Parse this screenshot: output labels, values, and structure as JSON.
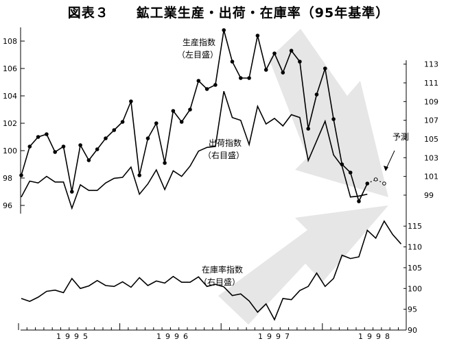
{
  "title": "図表３　　鉱工業生産・出荷・在庫率（95年基準）",
  "annotations": {
    "production": [
      "生産指数",
      "（左目盛）"
    ],
    "shipment": [
      "出荷指数",
      "（右目盛）"
    ],
    "inventory": [
      "在庫率指数",
      "（右目盛）"
    ],
    "forecast": "予測"
  },
  "colors": {
    "line": "#000000",
    "arrow": "#e6e6e6"
  },
  "chart_data": [
    {
      "type": "line",
      "x_axis": {
        "years": [
          "1995",
          "1996",
          "1997",
          "1998"
        ]
      },
      "ylim": [
        95.5,
        109
      ],
      "yticks": [
        96,
        98,
        100,
        102,
        104,
        106,
        108
      ],
      "series": [
        {
          "name": "生産指数",
          "values": [
            98.2,
            100.3,
            101.0,
            101.2,
            99.9,
            100.3,
            97.0,
            100.4,
            99.3,
            100.1,
            100.9,
            101.5,
            102.1,
            103.6,
            98.2,
            100.9,
            102.0,
            99.1,
            102.9,
            102.1,
            103.0,
            105.1,
            104.5,
            104.8,
            108.8,
            106.5,
            105.3,
            105.3,
            108.4,
            105.9,
            107.1,
            105.7,
            107.3,
            106.5,
            101.6,
            104.1,
            106.0,
            102.3,
            99.0,
            98.4,
            96.3,
            97.6
          ],
          "forecast": [
            97.9,
            97.6
          ]
        }
      ]
    },
    {
      "type": "line",
      "ylim": [
        97.9,
        114
      ],
      "yticks": [
        99,
        101,
        103,
        105,
        107,
        109,
        111,
        113
      ],
      "series": [
        {
          "name": "出荷指数",
          "values": [
            98.8,
            100.5,
            100.3,
            101.0,
            100.4,
            100.4,
            97.6,
            100.1,
            99.5,
            99.5,
            100.3,
            100.8,
            100.9,
            102.0,
            99.1,
            100.2,
            101.7,
            99.6,
            101.6,
            101.0,
            102.1,
            103.7,
            104.1,
            104.2,
            110.1,
            107.3,
            107.0,
            104.4,
            108.5,
            106.6,
            107.2,
            106.4,
            107.6,
            107.3,
            102.7,
            104.8,
            106.9,
            103.3,
            102.1,
            98.8,
            98.9,
            99.1
          ]
        }
      ]
    },
    {
      "type": "line",
      "ylim": [
        90,
        118
      ],
      "yticks": [
        90,
        95,
        100,
        105,
        110,
        115
      ],
      "series": [
        {
          "name": "在庫率指数",
          "values": [
            97.6,
            96.9,
            97.9,
            99.3,
            99.6,
            99.0,
            102.4,
            100.0,
            100.6,
            101.9,
            100.7,
            100.5,
            101.6,
            100.3,
            102.6,
            100.7,
            101.8,
            101.3,
            102.9,
            101.5,
            101.5,
            102.8,
            100.5,
            101.0,
            100.4,
            98.3,
            98.7,
            97.0,
            94.3,
            96.3,
            92.5,
            97.6,
            97.3,
            99.5,
            100.5,
            103.7,
            100.5,
            102.4,
            108.0,
            107.2,
            107.6,
            114.0,
            112.1,
            116.2,
            113.0,
            110.7
          ]
        }
      ]
    }
  ]
}
